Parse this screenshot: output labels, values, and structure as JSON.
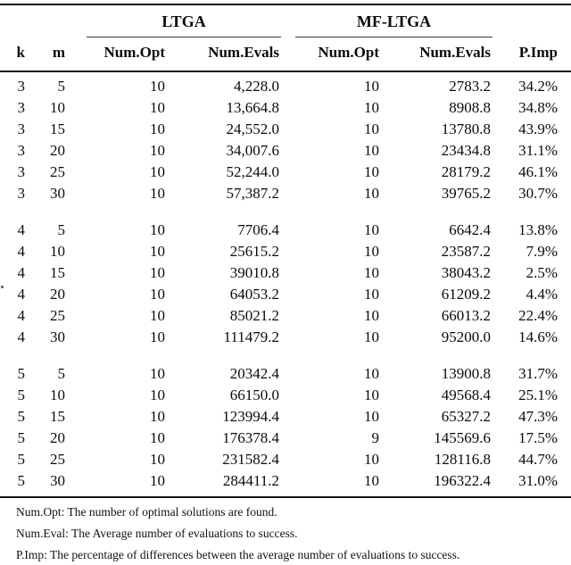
{
  "table": {
    "group_headers": [
      {
        "label": "LTGA"
      },
      {
        "label": "MF-LTGA"
      }
    ],
    "columns": [
      "k",
      "m",
      "Num.Opt",
      "Num.Evals",
      "Num.Opt",
      "Num.Evals",
      "P.Imp"
    ],
    "rows": [
      [
        "3",
        "5",
        "10",
        "4,228.0",
        "10",
        "2783.2",
        "34.2%"
      ],
      [
        "3",
        "10",
        "10",
        "13,664.8",
        "10",
        "8908.8",
        "34.8%"
      ],
      [
        "3",
        "15",
        "10",
        "24,552.0",
        "10",
        "13780.8",
        "43.9%"
      ],
      [
        "3",
        "20",
        "10",
        "34,007.6",
        "10",
        "23434.8",
        "31.1%"
      ],
      [
        "3",
        "25",
        "10",
        "52,244.0",
        "10",
        "28179.2",
        "46.1%"
      ],
      [
        "3",
        "30",
        "10",
        "57,387.2",
        "10",
        "39765.2",
        "30.7%"
      ],
      [
        "4",
        "5",
        "10",
        "7706.4",
        "10",
        "6642.4",
        "13.8%"
      ],
      [
        "4",
        "10",
        "10",
        "25615.2",
        "10",
        "23587.2",
        "7.9%"
      ],
      [
        "4",
        "15",
        "10",
        "39010.8",
        "10",
        "38043.2",
        "2.5%"
      ],
      [
        "4",
        "20",
        "10",
        "64053.2",
        "10",
        "61209.2",
        "4.4%"
      ],
      [
        "4",
        "25",
        "10",
        "85021.2",
        "10",
        "66013.2",
        "22.4%"
      ],
      [
        "4",
        "30",
        "10",
        "111479.2",
        "10",
        "95200.0",
        "14.6%"
      ],
      [
        "5",
        "5",
        "10",
        "20342.4",
        "10",
        "13900.8",
        "31.7%"
      ],
      [
        "5",
        "10",
        "10",
        "66150.0",
        "10",
        "49568.4",
        "25.1%"
      ],
      [
        "5",
        "15",
        "10",
        "123994.4",
        "10",
        "65327.2",
        "47.3%"
      ],
      [
        "5",
        "20",
        "10",
        "176378.4",
        "9",
        "145569.6",
        "17.5%"
      ],
      [
        "5",
        "25",
        "10",
        "231582.4",
        "10",
        "128116.8",
        "44.7%"
      ],
      [
        "5",
        "30",
        "10",
        "284411.2",
        "10",
        "196322.4",
        "31.0%"
      ]
    ],
    "rows_per_group": 6,
    "footnotes": [
      "Num.Opt: The number of optimal solutions are found.",
      "Num.Eval: The Average number of evaluations to success.",
      "P.Imp: The percentage of differences between the average number of evaluations to success."
    ],
    "colors": {
      "rule": "#141414",
      "text": "#0b0b0b",
      "background": "#ffffff"
    }
  }
}
